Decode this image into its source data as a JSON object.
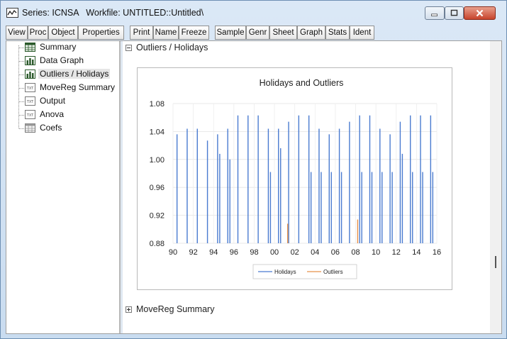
{
  "window": {
    "title": "Series: ICNSA   Workfile: UNTITLED::Untitled\\"
  },
  "toolbar": {
    "buttons": [
      "View",
      "Proc",
      "Object",
      "Properties",
      "Print",
      "Name",
      "Freeze",
      "Sample",
      "Genr",
      "Sheet",
      "Graph",
      "Stats",
      "Ident"
    ]
  },
  "tree": {
    "items": [
      {
        "label": "Summary",
        "icon": "table-icon"
      },
      {
        "label": "Data Graph",
        "icon": "graph-icon"
      },
      {
        "label": "Outliers / Holidays",
        "icon": "graph-icon",
        "selected": true
      },
      {
        "label": "MoveReg Summary",
        "icon": "text-icon"
      },
      {
        "label": "Output",
        "icon": "text-icon"
      },
      {
        "label": "Anova",
        "icon": "text-icon"
      },
      {
        "label": "Coefs",
        "icon": "table-icon"
      }
    ]
  },
  "sections": {
    "first": "Outliers / Holidays",
    "second": "MoveReg Summary"
  },
  "colors": {
    "holidays": "#4a7bd0",
    "outliers": "#e8924a"
  },
  "chart_data": {
    "type": "bar",
    "title": "Holidays and Outliers",
    "ylim": [
      0.88,
      1.08
    ],
    "xlim": [
      1990,
      2016
    ],
    "y_ticks": [
      "0.88",
      "0.92",
      "0.96",
      "1.00",
      "1.04",
      "1.08"
    ],
    "x_ticks": [
      "90",
      "92",
      "94",
      "96",
      "98",
      "00",
      "02",
      "04",
      "06",
      "08",
      "10",
      "12",
      "14",
      "16"
    ],
    "grid": true,
    "legend_position": "bottom",
    "series": [
      {
        "name": "Holidays",
        "color": "#4a7bd0",
        "x": [
          1990.5,
          1990.5,
          1991.5,
          1991.5,
          1992.5,
          1992.5,
          1993.5,
          1993.5,
          1994.5,
          1994.5,
          1995.5,
          1995.5,
          1996.5,
          1996.5,
          1997.5,
          1997.5,
          1998.5,
          1998.5,
          1999.5,
          1999.5,
          2000.5,
          2000.5,
          2001.5,
          2001.5,
          2002.5,
          2002.5,
          2003.5,
          2003.5,
          2004.5,
          2004.5,
          2005.5,
          2005.5,
          2006.5,
          2006.5,
          2007.5,
          2007.5,
          2008.5,
          2008.5,
          2009.5,
          2009.5,
          2010.5,
          2010.5,
          2011.5,
          2011.5,
          2012.5,
          2012.5,
          2013.5,
          2013.5,
          2014.5,
          2014.5,
          2015.5,
          2015.5
        ],
        "values": [
          1.036,
          0.88,
          1.044,
          0.88,
          1.044,
          0.88,
          1.027,
          0.88,
          1.036,
          1.008,
          1.044,
          1.0,
          1.063,
          0.88,
          1.063,
          0.88,
          1.063,
          0.88,
          1.044,
          0.982,
          1.044,
          1.016,
          1.054,
          0.88,
          1.063,
          0.88,
          1.063,
          0.982,
          1.044,
          0.982,
          1.036,
          0.982,
          1.044,
          0.982,
          1.054,
          0.88,
          1.063,
          0.982,
          1.063,
          0.982,
          1.044,
          0.982,
          1.036,
          0.982,
          1.054,
          1.008,
          1.063,
          0.982,
          1.063,
          0.982,
          1.063,
          0.982
        ]
      },
      {
        "name": "Outliers",
        "color": "#e8924a",
        "x": [
          2001.3,
          2008.2
        ],
        "values": [
          0.908,
          0.914
        ]
      }
    ]
  }
}
